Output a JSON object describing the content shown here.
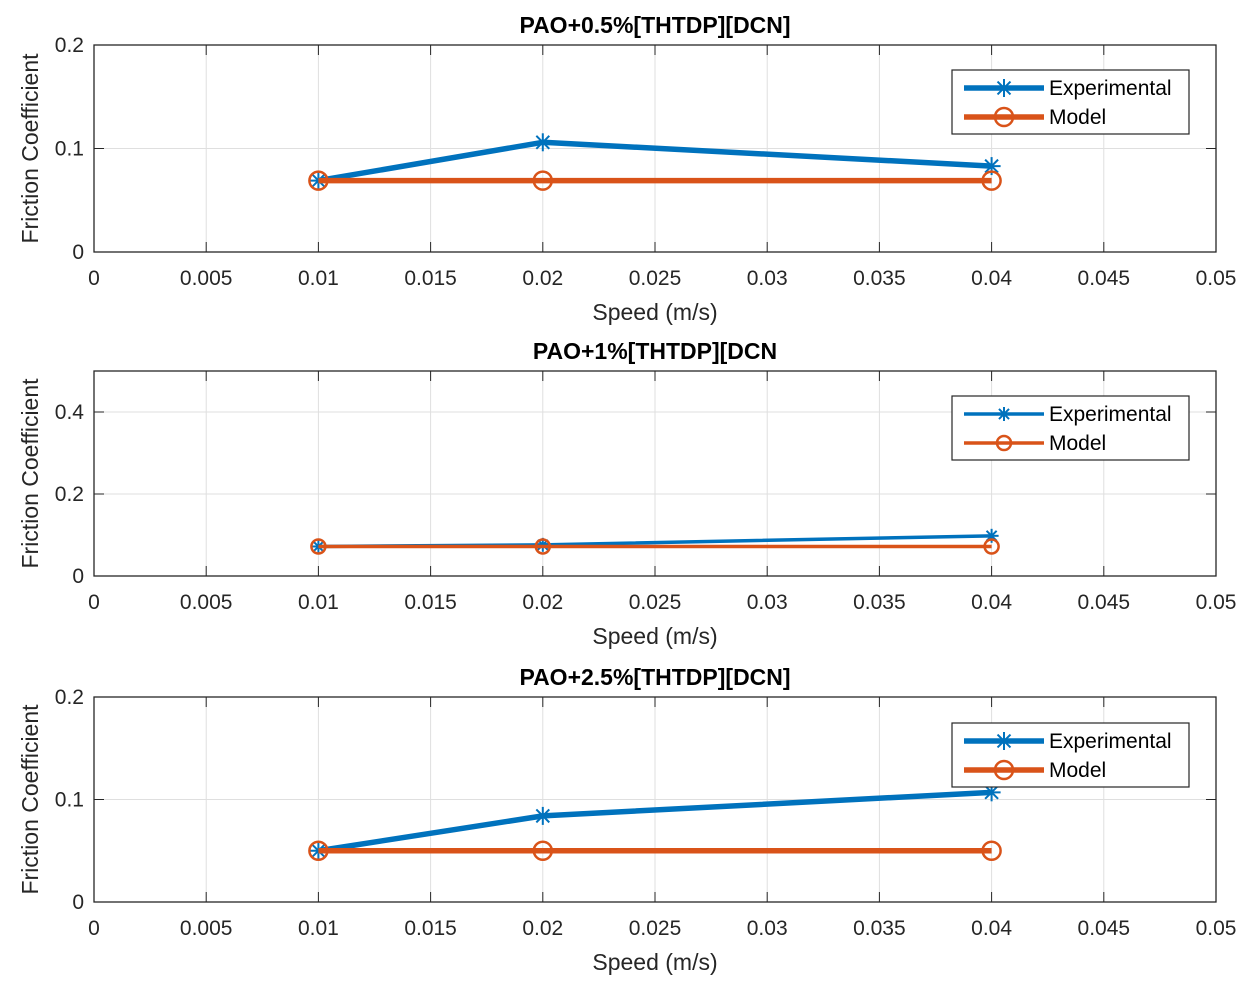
{
  "chart_data": [
    {
      "type": "line",
      "title": "PAO+0.5%[THTDP][DCN]",
      "xlabel": "Speed (m/s)",
      "ylabel": "Friction Coefficient",
      "xlim": [
        0,
        0.05
      ],
      "ylim": [
        0,
        0.2
      ],
      "xticks": [
        "0",
        "0.005",
        "0.01",
        "0.015",
        "0.02",
        "0.025",
        "0.03",
        "0.035",
        "0.04",
        "0.045",
        "0.05"
      ],
      "yticks": [
        "0",
        "0.1",
        "0.2"
      ],
      "grid": true,
      "legend": "top-right",
      "x": [
        0.01,
        0.02,
        0.04
      ],
      "series": [
        {
          "name": "Experimental",
          "values": [
            0.069,
            0.106,
            0.083
          ],
          "color": "#0072BD",
          "marker": "asterisk"
        },
        {
          "name": "Model",
          "values": [
            0.069,
            0.069,
            0.069
          ],
          "color": "#D95319",
          "marker": "circle"
        }
      ]
    },
    {
      "type": "line",
      "title": "PAO+1%[THTDP][DCN",
      "xlabel": "Speed (m/s)",
      "ylabel": "Friction Coefficient",
      "xlim": [
        0,
        0.05
      ],
      "ylim": [
        0,
        0.5
      ],
      "xticks": [
        "0",
        "0.005",
        "0.01",
        "0.015",
        "0.02",
        "0.025",
        "0.03",
        "0.035",
        "0.04",
        "0.045",
        "0.05"
      ],
      "yticks": [
        "0",
        "0.2",
        "0.4"
      ],
      "grid": true,
      "legend": "top-right",
      "x": [
        0.01,
        0.02,
        0.04
      ],
      "series": [
        {
          "name": "Experimental",
          "values": [
            0.072,
            0.076,
            0.098
          ],
          "color": "#0072BD",
          "marker": "asterisk"
        },
        {
          "name": "Model",
          "values": [
            0.072,
            0.072,
            0.072
          ],
          "color": "#D95319",
          "marker": "circle"
        }
      ]
    },
    {
      "type": "line",
      "title": "PAO+2.5%[THTDP][DCN]",
      "xlabel": "Speed (m/s)",
      "ylabel": "Friction Coefficient",
      "xlim": [
        0,
        0.05
      ],
      "ylim": [
        0,
        0.2
      ],
      "xticks": [
        "0",
        "0.005",
        "0.01",
        "0.015",
        "0.02",
        "0.025",
        "0.03",
        "0.035",
        "0.04",
        "0.045",
        "0.05"
      ],
      "yticks": [
        "0",
        "0.1",
        "0.2"
      ],
      "grid": true,
      "legend": "top-right",
      "x": [
        0.01,
        0.02,
        0.04
      ],
      "series": [
        {
          "name": "Experimental",
          "values": [
            0.05,
            0.084,
            0.107
          ],
          "color": "#0072BD",
          "marker": "asterisk"
        },
        {
          "name": "Model",
          "values": [
            0.05,
            0.05,
            0.05
          ],
          "color": "#D95319",
          "marker": "circle"
        }
      ]
    }
  ]
}
